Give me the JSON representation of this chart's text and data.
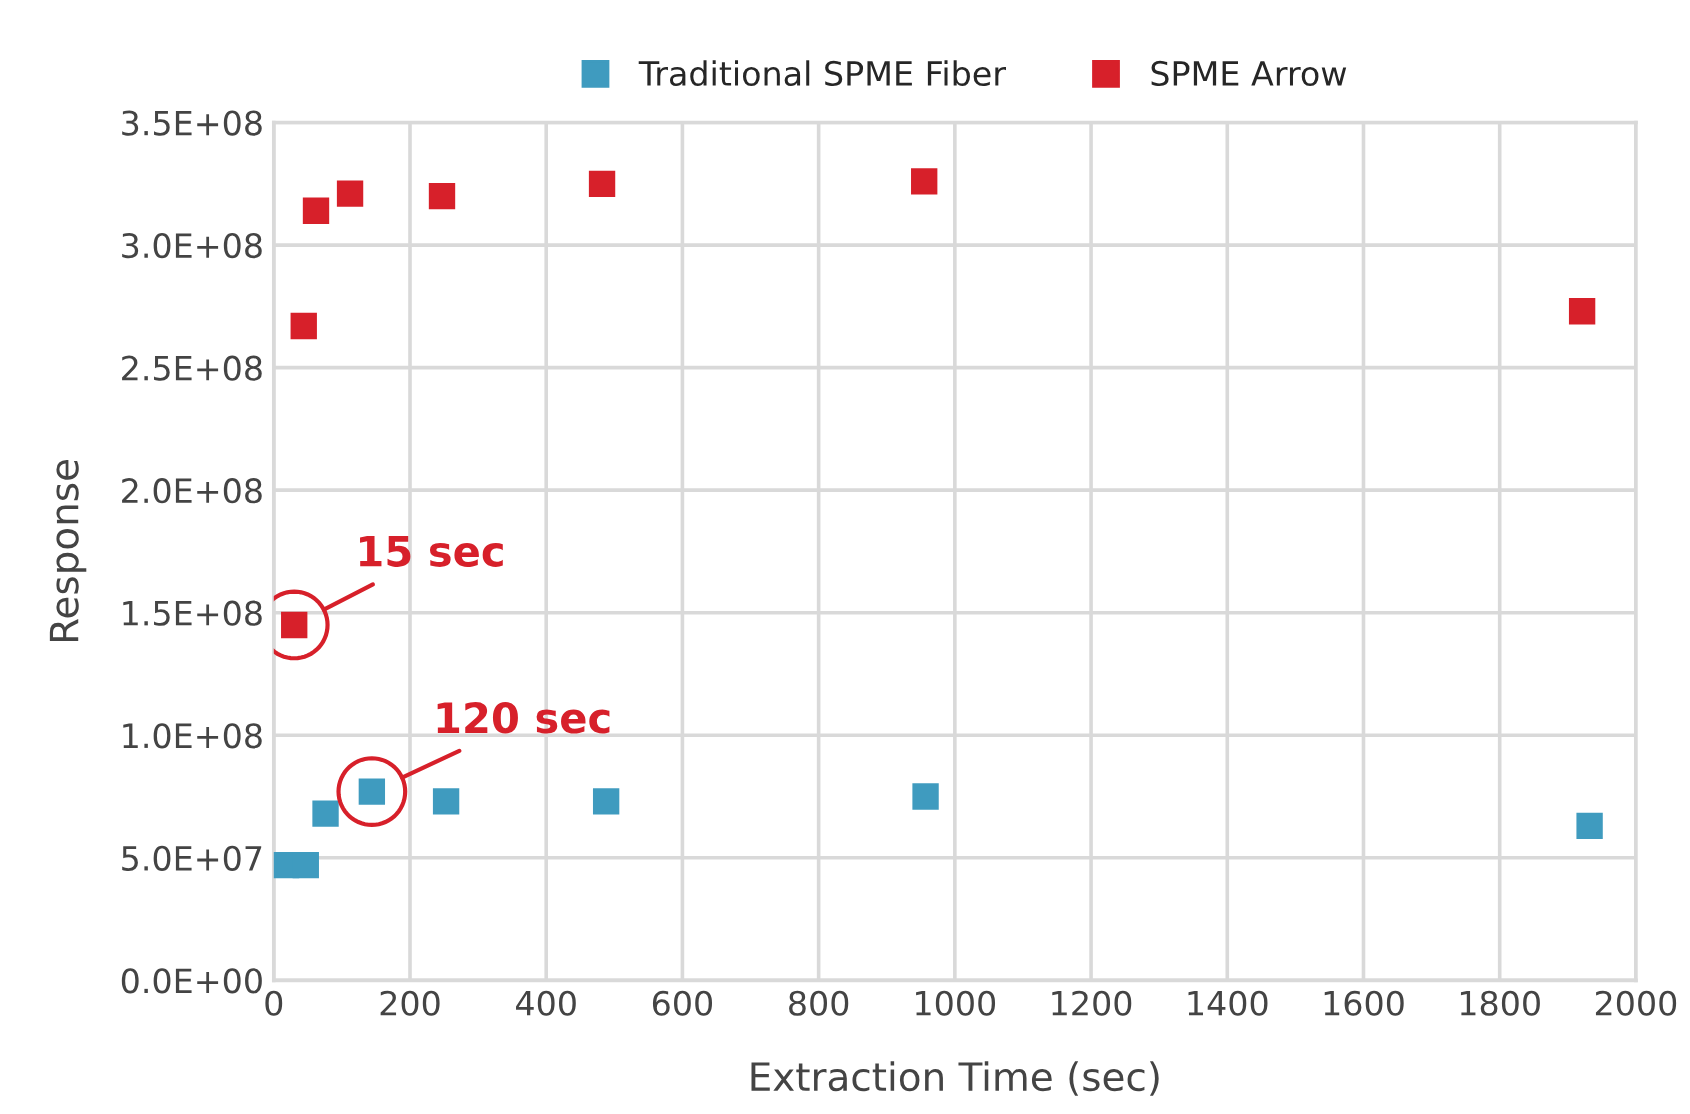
{
  "chart_data": {
    "type": "scatter",
    "xlabel": "Extraction Time (sec)",
    "ylabel": "Response",
    "series": [
      {
        "name": "Traditional SPME Fiber",
        "color": "#3f9bbf",
        "x": [
          18,
          47,
          76,
          144,
          253,
          488,
          957,
          1932
        ],
        "values": [
          47000000,
          47000000,
          68000000,
          77000000,
          73000000,
          73000000,
          75000000,
          63000000
        ]
      },
      {
        "name": "SPME Arrow",
        "color": "#d7202a",
        "x": [
          30,
          44,
          62,
          112,
          247,
          482,
          955,
          1921
        ],
        "values": [
          145000000,
          267000000,
          314000000,
          321000000,
          320000000,
          325000000,
          326000000,
          273000000
        ]
      }
    ],
    "annotations": [
      {
        "text": "15 sec",
        "x": 30,
        "y": 145000000
      },
      {
        "text": "120 sec",
        "x": 144,
        "y": 77000000
      }
    ],
    "xlim": [
      0,
      2000
    ],
    "xticks": [
      0,
      200,
      400,
      600,
      800,
      1000,
      1200,
      1400,
      1600,
      1800,
      2000
    ],
    "ylim": [
      0,
      350000000
    ],
    "yticks": [
      {
        "value": 0,
        "label": "0.0E+00"
      },
      {
        "value": 50000000,
        "label": "5.0E+07"
      },
      {
        "value": 100000000,
        "label": "1.0E+08"
      },
      {
        "value": 150000000,
        "label": "1.5E+08"
      },
      {
        "value": 200000000,
        "label": "2.0E+08"
      },
      {
        "value": 250000000,
        "label": "2.5E+08"
      },
      {
        "value": 300000000,
        "label": "3.0E+08"
      },
      {
        "value": 350000000,
        "label": "3.5E+08"
      }
    ],
    "grid": true,
    "legend": "top",
    "marker": "square"
  }
}
